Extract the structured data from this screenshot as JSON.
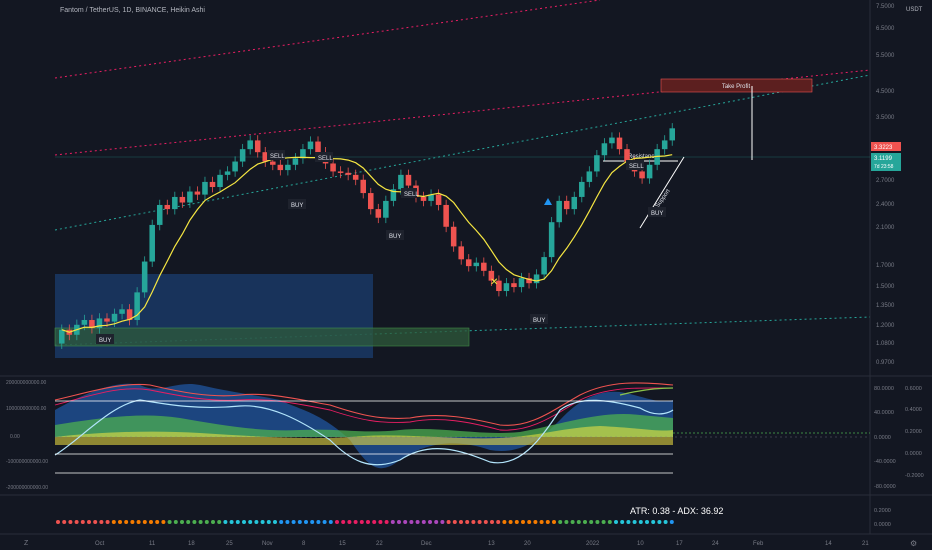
{
  "header": {
    "symbol_line": "Fantom / TetherUS, 1D, BINANCE, Heikin Ashi",
    "currency": "USDT"
  },
  "colors": {
    "background": "#131722",
    "up": "#26a69a",
    "down": "#ef5350",
    "sma": "#f5e642",
    "resistance_line": "#26a69a",
    "support_line": "#ffffff",
    "channel_upper": "#e91e63",
    "channel_lower": "#26a69a",
    "take_profit_fill": "#5c1f1f",
    "last_price_bg": "#ef5350",
    "second_price_bg": "#26a69a"
  },
  "main_panel": {
    "price_labels": [
      "7.5000",
      "6.5000",
      "5.5000",
      "4.5000",
      "3.5000",
      "2.7000",
      "2.4000",
      "2.1000",
      "1.7000",
      "1.5000",
      "1.3500",
      "1.2000",
      "1.0800",
      "0.9700"
    ],
    "last_price": "3.3223",
    "second_price": "3.1199",
    "second_price_sub": "7d 23:58",
    "annotations": {
      "take_profit": "Take Profit",
      "resistance": "Resistance",
      "support": "Support",
      "signals": [
        {
          "label": "SELL"
        },
        {
          "label": "SELL"
        },
        {
          "label": "BUY"
        },
        {
          "label": "SELL"
        },
        {
          "label": "BUY"
        },
        {
          "label": "BUY"
        },
        {
          "label": "SELL"
        },
        {
          "label": "BUY"
        },
        {
          "label": "BUY"
        }
      ]
    }
  },
  "osc_panel": {
    "left_labels": [
      "200000000000.00",
      "100000000000.00",
      "0.00",
      "-100000000000.00",
      "-200000000000.00"
    ],
    "right_labels": [
      "80.0000",
      "40.0000",
      "0.0000",
      "-40.0000",
      "-80.0000"
    ],
    "far_right_labels": [
      "0.6000",
      "0.4000",
      "0.2000",
      "0.0000",
      "-0.2000"
    ]
  },
  "atr_panel": {
    "text": "ATR: 0.38 - ADX: 36.92",
    "right_labels": [
      "0.2000",
      "0.0000"
    ]
  },
  "x_axis": {
    "labels": [
      "Oct",
      "11",
      "18",
      "25",
      "Nov",
      "8",
      "15",
      "22",
      "Dec",
      "13",
      "20",
      "2022",
      "10",
      "17",
      "24",
      "Feb",
      "14",
      "21"
    ]
  },
  "footer": {
    "left_icon": "zoom-icon",
    "right_icon": "settings-icon"
  },
  "chart_data": {
    "type": "candlestick",
    "title": "Fantom / TetherUS, 1D, BINANCE, Heikin Ashi",
    "y_scale": "log",
    "series_candles": [
      [
        0.98,
        1.06
      ],
      [
        1.06,
        1.03
      ],
      [
        1.03,
        1.09
      ],
      [
        1.09,
        1.12
      ],
      [
        1.12,
        1.07
      ],
      [
        1.07,
        1.13
      ],
      [
        1.13,
        1.11
      ],
      [
        1.11,
        1.16
      ],
      [
        1.16,
        1.19
      ],
      [
        1.19,
        1.12
      ],
      [
        1.12,
        1.31
      ],
      [
        1.31,
        1.56
      ],
      [
        1.56,
        1.92
      ],
      [
        1.92,
        2.15
      ],
      [
        2.15,
        2.1
      ],
      [
        2.1,
        2.25
      ],
      [
        2.25,
        2.18
      ],
      [
        2.18,
        2.32
      ],
      [
        2.32,
        2.28
      ],
      [
        2.28,
        2.45
      ],
      [
        2.45,
        2.38
      ],
      [
        2.38,
        2.55
      ],
      [
        2.55,
        2.6
      ],
      [
        2.6,
        2.75
      ],
      [
        2.75,
        2.95
      ],
      [
        2.95,
        3.1
      ],
      [
        3.1,
        2.9
      ],
      [
        2.9,
        2.75
      ],
      [
        2.75,
        2.7
      ],
      [
        2.7,
        2.62
      ],
      [
        2.62,
        2.7
      ],
      [
        2.7,
        2.8
      ],
      [
        2.8,
        2.95
      ],
      [
        2.95,
        3.08
      ],
      [
        3.08,
        2.9
      ],
      [
        2.9,
        2.72
      ],
      [
        2.72,
        2.6
      ],
      [
        2.6,
        2.58
      ],
      [
        2.58,
        2.55
      ],
      [
        2.55,
        2.48
      ],
      [
        2.48,
        2.3
      ],
      [
        2.3,
        2.1
      ],
      [
        2.1,
        2.0
      ],
      [
        2.0,
        2.2
      ],
      [
        2.2,
        2.35
      ],
      [
        2.35,
        2.55
      ],
      [
        2.55,
        2.4
      ],
      [
        2.4,
        2.25
      ],
      [
        2.25,
        2.2
      ],
      [
        2.2,
        2.28
      ],
      [
        2.28,
        2.15
      ],
      [
        2.15,
        1.9
      ],
      [
        1.9,
        1.7
      ],
      [
        1.7,
        1.58
      ],
      [
        1.58,
        1.52
      ],
      [
        1.52,
        1.55
      ],
      [
        1.55,
        1.48
      ],
      [
        1.48,
        1.4
      ],
      [
        1.4,
        1.32
      ],
      [
        1.32,
        1.38
      ],
      [
        1.38,
        1.35
      ],
      [
        1.35,
        1.42
      ],
      [
        1.42,
        1.38
      ],
      [
        1.38,
        1.45
      ],
      [
        1.45,
        1.6
      ],
      [
        1.6,
        1.95
      ],
      [
        1.95,
        2.2
      ],
      [
        2.2,
        2.1
      ],
      [
        2.1,
        2.25
      ],
      [
        2.25,
        2.45
      ],
      [
        2.45,
        2.6
      ],
      [
        2.6,
        2.85
      ],
      [
        2.85,
        3.05
      ],
      [
        3.05,
        3.15
      ],
      [
        3.15,
        2.95
      ],
      [
        2.95,
        2.75
      ],
      [
        2.75,
        2.6
      ],
      [
        2.6,
        2.5
      ],
      [
        2.5,
        2.7
      ],
      [
        2.7,
        2.95
      ],
      [
        2.95,
        3.1
      ],
      [
        3.1,
        3.32
      ]
    ]
  }
}
